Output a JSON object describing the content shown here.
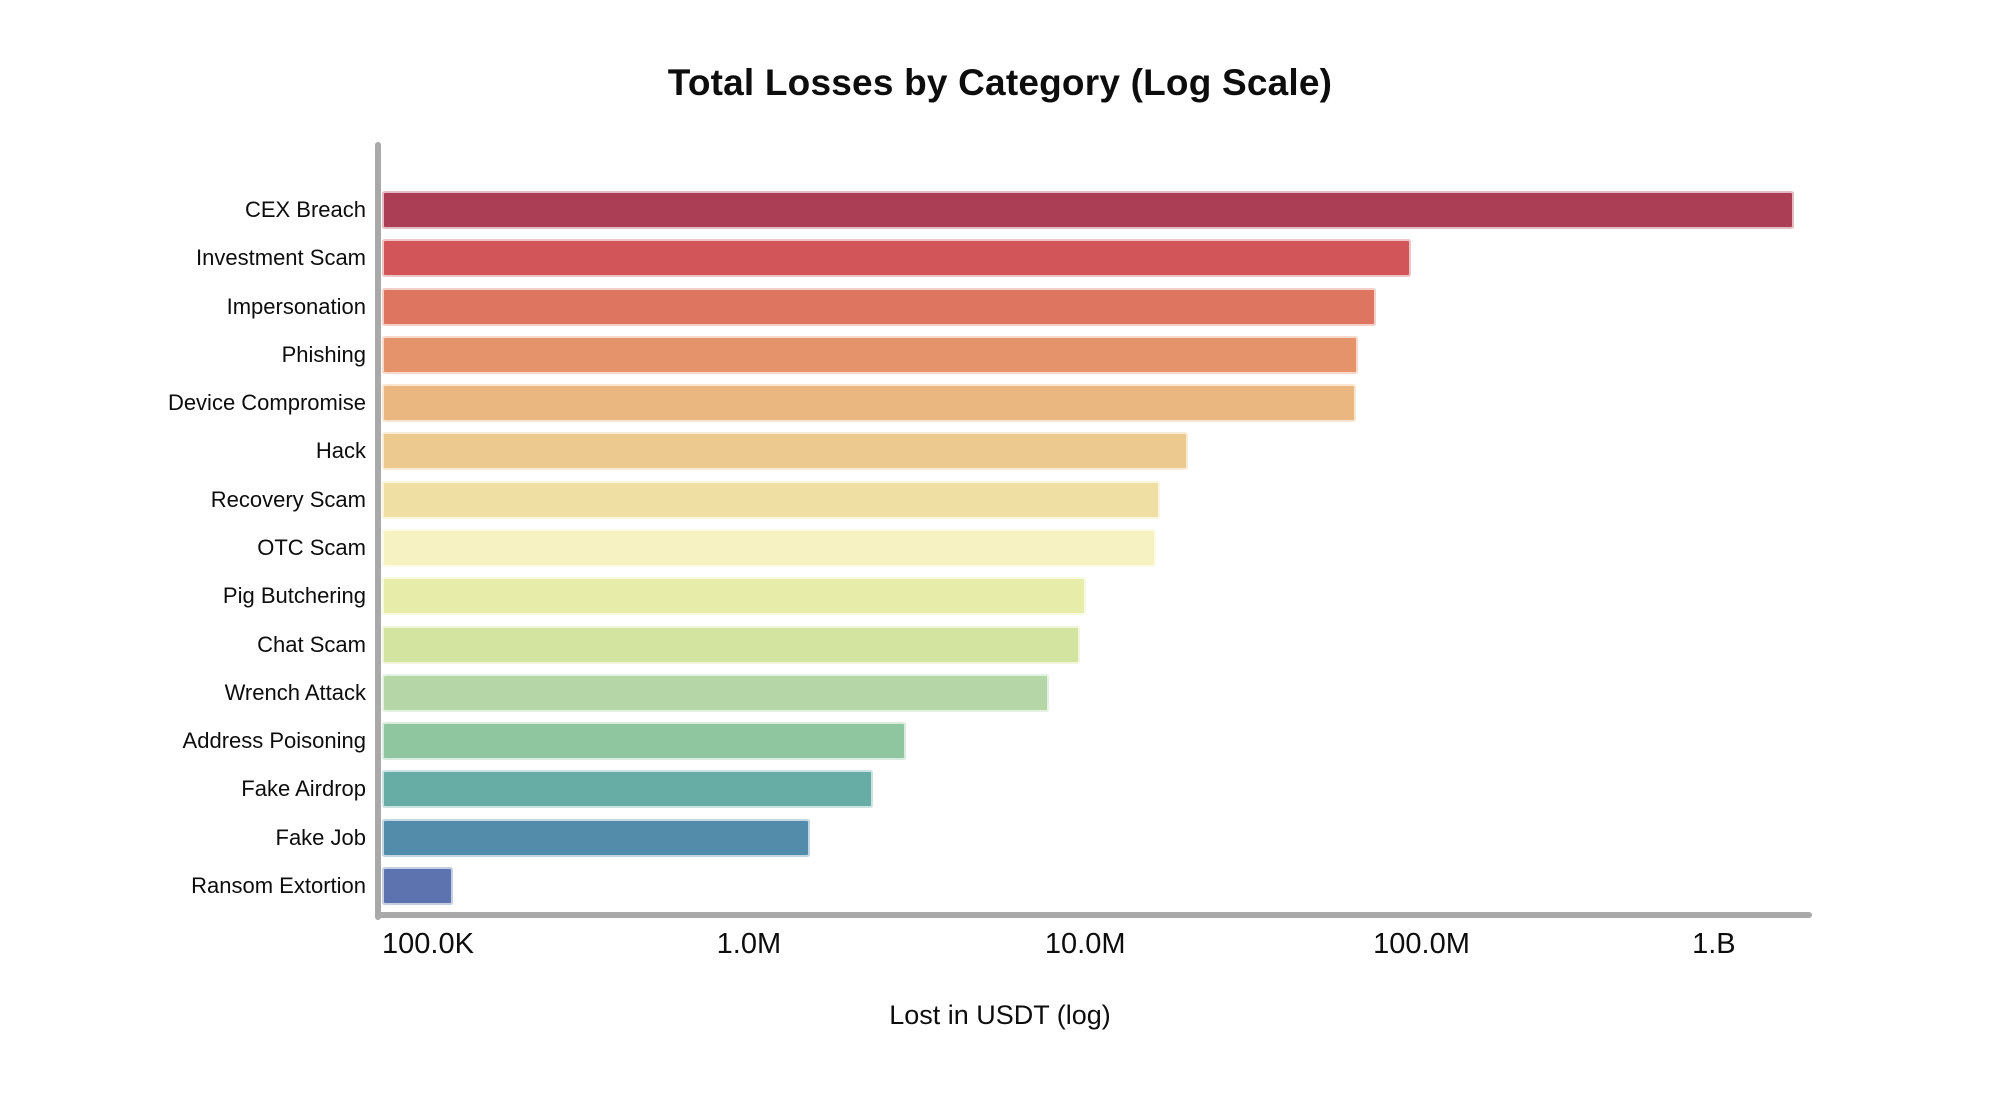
{
  "chart_data": {
    "type": "bar",
    "orientation": "horizontal",
    "scale": "log",
    "title": "Total Losses by Category (Log Scale)",
    "xlabel": "Lost in USDT (log)",
    "ylabel": "",
    "grid": false,
    "legend": false,
    "xlim": [
      80000,
      1400000000
    ],
    "categories": [
      "CEX Breach",
      "Investment Scam",
      "Impersonation",
      "Phishing",
      "Device Compromise",
      "Hack",
      "Recovery Scam",
      "OTC Scam",
      "Pig Butchering",
      "Chat Scam",
      "Wrench Attack",
      "Address Poisoning",
      "Fake Airdrop",
      "Fake Job",
      "Ransom Extortion"
    ],
    "values": [
      1260000000,
      92000000,
      72000000,
      64000000,
      63000000,
      20000000,
      16500000,
      16000000,
      9900000,
      9500000,
      7700000,
      2900000,
      2300000,
      1500000,
      130000
    ],
    "colors": [
      "#ab3d54",
      "#d25559",
      "#dd7561",
      "#e5936a",
      "#e9b77f",
      "#ecc98e",
      "#f0dfa3",
      "#f6f2c1",
      "#e7eda9",
      "#d3e4a0",
      "#b5d7a8",
      "#8fc6a0",
      "#68aca6",
      "#538cab",
      "#5c73b0"
    ],
    "xticks": [
      {
        "value": 100000,
        "label": "100.0K"
      },
      {
        "value": 1000000,
        "label": "1.0M"
      },
      {
        "value": 10000000,
        "label": "10.0M"
      },
      {
        "value": 100000000,
        "label": "100.0M"
      },
      {
        "value": 1000000000,
        "label": "1.B"
      }
    ],
    "axis_color": "#a9a9a9",
    "text_color": "#0d0d0d",
    "background": "#ffffff"
  }
}
